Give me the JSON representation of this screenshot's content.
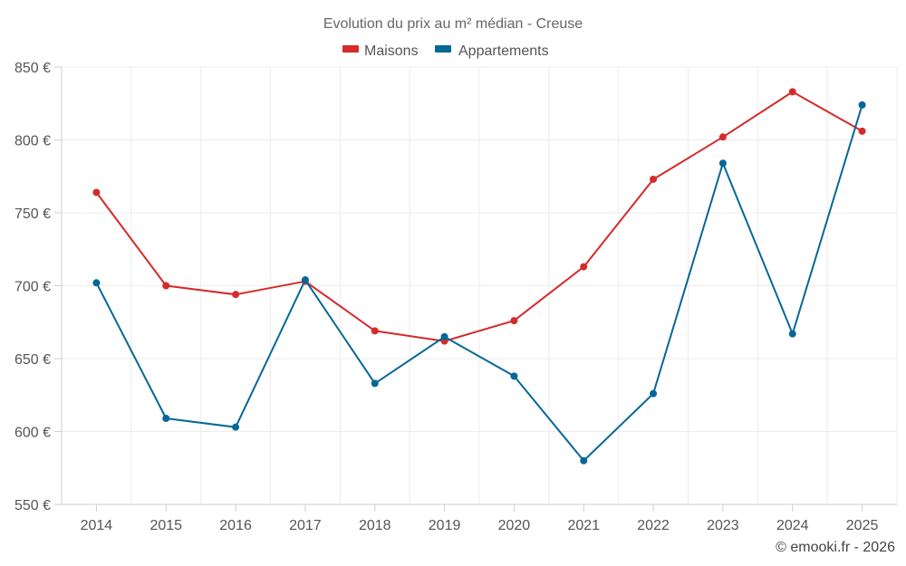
{
  "chart_data": {
    "type": "line",
    "title": "Evolution du prix au m² médian - Creuse",
    "categories": [
      "2014",
      "2015",
      "2016",
      "2017",
      "2018",
      "2019",
      "2020",
      "2021",
      "2022",
      "2023",
      "2024",
      "2025"
    ],
    "series": [
      {
        "name": "Maisons",
        "color": "#d42a2a",
        "values": [
          764,
          700,
          694,
          703,
          669,
          662,
          676,
          713,
          773,
          802,
          833,
          806
        ]
      },
      {
        "name": "Appartements",
        "color": "#076797",
        "values": [
          702,
          609,
          603,
          704,
          633,
          665,
          638,
          580,
          626,
          784,
          667,
          824
        ]
      }
    ],
    "ylim": [
      550,
      850
    ],
    "yticks": [
      550,
      600,
      650,
      700,
      750,
      800,
      850
    ],
    "ytick_labels": [
      "550 €",
      "600 €",
      "650 €",
      "700 €",
      "750 €",
      "800 €",
      "850 €"
    ],
    "xlabel": "",
    "ylabel": "",
    "grid": true,
    "legend_position": "top-center"
  },
  "credit": "© emooki.fr - 2026"
}
